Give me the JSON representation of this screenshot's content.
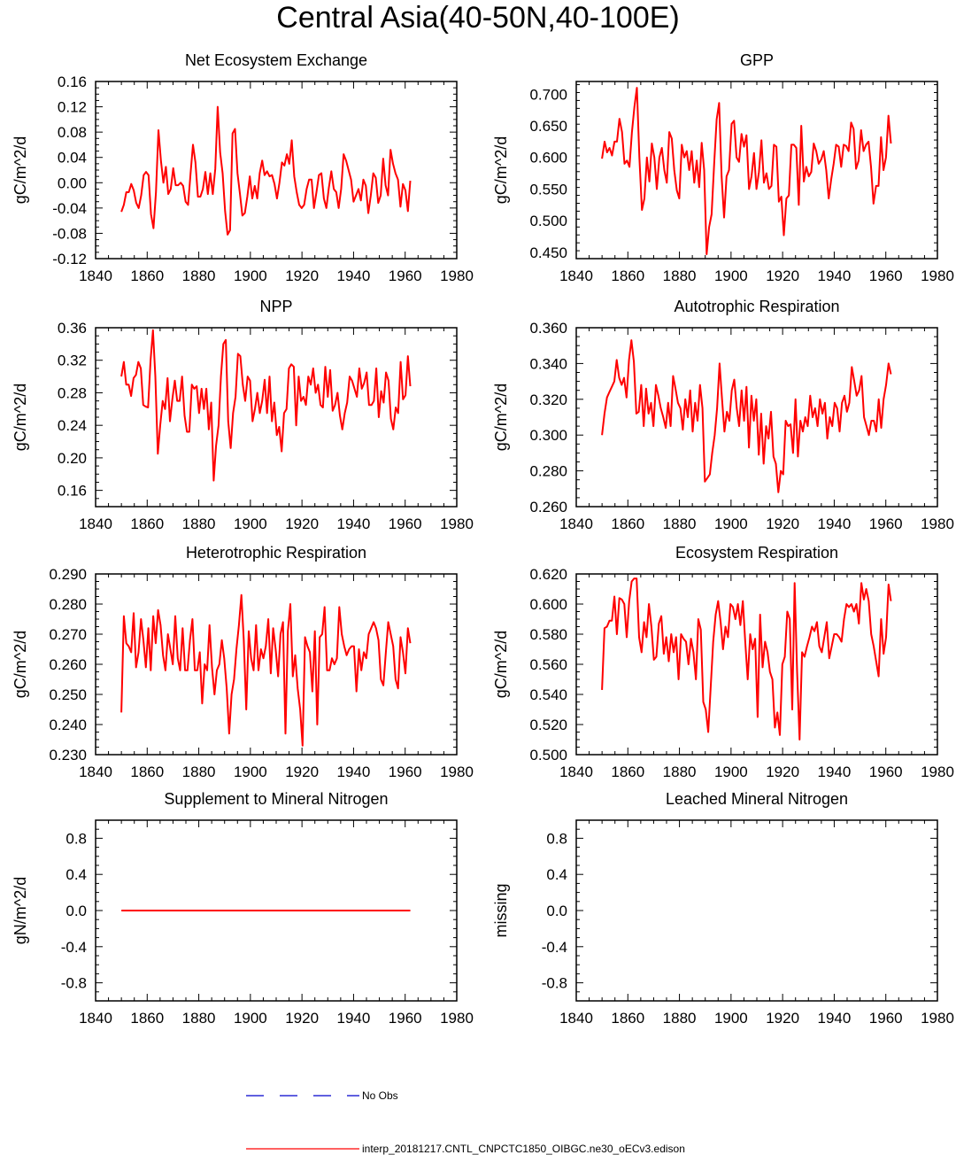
{
  "title": "Central Asia(40-50N,40-100E)",
  "colors": {
    "model": "#ff0000",
    "obs": "#0000cc",
    "axis": "#000000"
  },
  "legend": {
    "obs_label": "No Obs",
    "model_label": "interp_20181217.CNTL_CNPCTC1850_OIBGC.ne30_oECv3.edison"
  },
  "chart_data": [
    {
      "type": "line",
      "title": "Net Ecosystem Exchange",
      "ylabel": "gC/m^2/d",
      "xlim": [
        1840,
        1980
      ],
      "ylim": [
        -0.12,
        0.16
      ],
      "xticks": [
        "1840",
        "1860",
        "1880",
        "1900",
        "1920",
        "1940",
        "1960",
        "1980"
      ],
      "yticks": [
        "-0.12",
        "-0.08",
        "-0.04",
        "0.00",
        "0.04",
        "0.08",
        "0.12",
        "0.16"
      ],
      "x_start": 1850,
      "series": [
        {
          "values": [
            -0.046,
            -0.035,
            -0.015,
            -0.015,
            -0.002,
            -0.012,
            -0.032,
            -0.04,
            -0.02,
            0.012,
            0.017,
            0.012,
            -0.05,
            -0.072,
            -0.015,
            0.083,
            0.035,
            0.0,
            0.025,
            -0.018,
            -0.01,
            0.023,
            -0.004,
            -0.004,
            0.0,
            -0.005,
            -0.03,
            -0.035,
            0.015,
            0.06,
            0.032,
            -0.022,
            -0.022,
            -0.01,
            0.017,
            -0.018,
            0.015,
            -0.018,
            0.022,
            0.12,
            0.048,
            0.015,
            -0.045,
            -0.082,
            -0.075,
            0.078,
            0.085,
            0.015,
            -0.018,
            -0.052,
            -0.048,
            -0.022,
            0.01,
            -0.025,
            -0.005,
            -0.025,
            0.015,
            0.035,
            0.012,
            0.018,
            0.01,
            0.012,
            -0.002,
            -0.025,
            0.0,
            0.032,
            0.027,
            0.045,
            0.03,
            0.067,
            0.01,
            -0.015,
            -0.035,
            -0.04,
            -0.035,
            -0.01,
            0.005,
            0.005,
            -0.04,
            -0.015,
            0.012,
            0.015,
            -0.025,
            -0.04,
            -0.008,
            0.018,
            -0.01,
            -0.015,
            -0.04,
            -0.01,
            0.045,
            0.035,
            0.02,
            0.005,
            -0.03,
            -0.02,
            -0.01,
            -0.028,
            0.005,
            -0.005,
            -0.048,
            -0.02,
            0.015,
            0.008,
            -0.032,
            -0.02,
            0.038,
            -0.004,
            -0.02,
            0.052,
            0.03,
            0.015,
            0.005,
            -0.038,
            -0.002,
            -0.012,
            -0.045,
            0.003
          ]
        }
      ]
    },
    {
      "type": "line",
      "title": "GPP",
      "ylabel": "gC/m^2/d",
      "xlim": [
        1840,
        1980
      ],
      "ylim": [
        0.44,
        0.72
      ],
      "xticks": [
        "1840",
        "1860",
        "1880",
        "1900",
        "1920",
        "1940",
        "1960",
        "1980"
      ],
      "yticks": [
        "0.450",
        "0.500",
        "0.550",
        "0.600",
        "0.650",
        "0.700"
      ],
      "ytick_values": [
        0.45,
        0.5,
        0.55,
        0.6,
        0.65,
        0.7
      ],
      "x_start": 1850,
      "series": [
        {
          "values": [
            0.598,
            0.625,
            0.608,
            0.615,
            0.603,
            0.625,
            0.625,
            0.661,
            0.64,
            0.59,
            0.595,
            0.585,
            0.64,
            0.68,
            0.71,
            0.6,
            0.517,
            0.535,
            0.6,
            0.562,
            0.622,
            0.6,
            0.55,
            0.6,
            0.615,
            0.58,
            0.56,
            0.64,
            0.63,
            0.58,
            0.548,
            0.535,
            0.62,
            0.6,
            0.61,
            0.58,
            0.61,
            0.56,
            0.595,
            0.553,
            0.623,
            0.58,
            0.447,
            0.49,
            0.51,
            0.59,
            0.66,
            0.686,
            0.57,
            0.505,
            0.57,
            0.58,
            0.653,
            0.658,
            0.6,
            0.593,
            0.637,
            0.617,
            0.635,
            0.55,
            0.57,
            0.607,
            0.55,
            0.577,
            0.627,
            0.56,
            0.575,
            0.55,
            0.555,
            0.62,
            0.617,
            0.53,
            0.538,
            0.477,
            0.535,
            0.54,
            0.62,
            0.62,
            0.615,
            0.525,
            0.65,
            0.562,
            0.585,
            0.57,
            0.577,
            0.622,
            0.61,
            0.59,
            0.597,
            0.61,
            0.58,
            0.535,
            0.565,
            0.59,
            0.62,
            0.617,
            0.585,
            0.62,
            0.618,
            0.61,
            0.655,
            0.645,
            0.582,
            0.595,
            0.643,
            0.61,
            0.62,
            0.625,
            0.585,
            0.527,
            0.555,
            0.555,
            0.632,
            0.58,
            0.6,
            0.666,
            0.622
          ]
        }
      ]
    },
    {
      "type": "line",
      "title": "NPP",
      "ylabel": "gC/m^2/d",
      "xlim": [
        1840,
        1980
      ],
      "ylim": [
        0.14,
        0.36
      ],
      "xticks": [
        "1840",
        "1860",
        "1880",
        "1900",
        "1920",
        "1940",
        "1960",
        "1980"
      ],
      "yticks": [
        "0.16",
        "0.20",
        "0.24",
        "0.28",
        "0.32",
        "0.36"
      ],
      "x_start": 1850,
      "series": [
        {
          "values": [
            0.3,
            0.318,
            0.29,
            0.29,
            0.276,
            0.298,
            0.302,
            0.318,
            0.31,
            0.265,
            0.263,
            0.262,
            0.32,
            0.357,
            0.3,
            0.205,
            0.24,
            0.27,
            0.26,
            0.298,
            0.245,
            0.272,
            0.295,
            0.27,
            0.27,
            0.3,
            0.252,
            0.232,
            0.232,
            0.29,
            0.285,
            0.288,
            0.255,
            0.285,
            0.26,
            0.285,
            0.235,
            0.268,
            0.172,
            0.215,
            0.24,
            0.3,
            0.34,
            0.345,
            0.245,
            0.212,
            0.255,
            0.275,
            0.328,
            0.325,
            0.29,
            0.27,
            0.3,
            0.295,
            0.245,
            0.26,
            0.28,
            0.255,
            0.27,
            0.296,
            0.255,
            0.3,
            0.245,
            0.268,
            0.228,
            0.238,
            0.208,
            0.255,
            0.26,
            0.31,
            0.315,
            0.312,
            0.24,
            0.3,
            0.27,
            0.275,
            0.265,
            0.3,
            0.29,
            0.31,
            0.28,
            0.29,
            0.265,
            0.262,
            0.312,
            0.275,
            0.308,
            0.258,
            0.265,
            0.28,
            0.252,
            0.235,
            0.255,
            0.268,
            0.3,
            0.295,
            0.285,
            0.275,
            0.31,
            0.285,
            0.292,
            0.305,
            0.265,
            0.265,
            0.27,
            0.31,
            0.25,
            0.282,
            0.268,
            0.305,
            0.295,
            0.248,
            0.235,
            0.262,
            0.255,
            0.318,
            0.272,
            0.277,
            0.325,
            0.288
          ]
        }
      ]
    },
    {
      "type": "line",
      "title": "Autotrophic Respiration",
      "ylabel": "gC/m^2/d",
      "xlim": [
        1840,
        1980
      ],
      "ylim": [
        0.26,
        0.36
      ],
      "xticks": [
        "1840",
        "1860",
        "1880",
        "1900",
        "1920",
        "1940",
        "1960",
        "1980"
      ],
      "yticks": [
        "0.260",
        "0.280",
        "0.300",
        "0.320",
        "0.340",
        "0.360"
      ],
      "x_start": 1850,
      "series": [
        {
          "values": [
            0.3,
            0.312,
            0.321,
            0.324,
            0.327,
            0.33,
            0.342,
            0.332,
            0.328,
            0.332,
            0.321,
            0.342,
            0.353,
            0.341,
            0.312,
            0.313,
            0.328,
            0.305,
            0.326,
            0.312,
            0.318,
            0.305,
            0.328,
            0.322,
            0.315,
            0.31,
            0.304,
            0.318,
            0.305,
            0.333,
            0.326,
            0.318,
            0.315,
            0.303,
            0.32,
            0.31,
            0.325,
            0.302,
            0.318,
            0.308,
            0.328,
            0.315,
            0.274,
            0.276,
            0.278,
            0.29,
            0.3,
            0.315,
            0.34,
            0.32,
            0.302,
            0.313,
            0.308,
            0.325,
            0.331,
            0.315,
            0.305,
            0.325,
            0.308,
            0.327,
            0.293,
            0.322,
            0.308,
            0.32,
            0.289,
            0.312,
            0.284,
            0.305,
            0.298,
            0.313,
            0.288,
            0.284,
            0.268,
            0.28,
            0.278,
            0.308,
            0.305,
            0.306,
            0.29,
            0.32,
            0.288,
            0.308,
            0.302,
            0.31,
            0.305,
            0.322,
            0.31,
            0.315,
            0.305,
            0.32,
            0.312,
            0.318,
            0.298,
            0.31,
            0.305,
            0.318,
            0.315,
            0.302,
            0.318,
            0.322,
            0.313,
            0.318,
            0.338,
            0.33,
            0.322,
            0.325,
            0.333,
            0.31,
            0.305,
            0.3,
            0.308,
            0.308,
            0.302,
            0.32,
            0.304,
            0.32,
            0.328,
            0.34,
            0.334
          ]
        }
      ]
    },
    {
      "type": "line",
      "title": "Heterotrophic Respiration",
      "ylabel": "gC/m^2/d",
      "xlim": [
        1840,
        1980
      ],
      "ylim": [
        0.23,
        0.29
      ],
      "xticks": [
        "1840",
        "1860",
        "1880",
        "1900",
        "1920",
        "1940",
        "1960",
        "1980"
      ],
      "yticks": [
        "0.230",
        "0.240",
        "0.250",
        "0.260",
        "0.270",
        "0.280",
        "0.290"
      ],
      "x_start": 1850,
      "series": [
        {
          "values": [
            0.244,
            0.276,
            0.267,
            0.266,
            0.264,
            0.277,
            0.259,
            0.264,
            0.275,
            0.268,
            0.259,
            0.272,
            0.258,
            0.276,
            0.267,
            0.278,
            0.273,
            0.263,
            0.258,
            0.27,
            0.265,
            0.26,
            0.276,
            0.262,
            0.258,
            0.272,
            0.258,
            0.258,
            0.268,
            0.275,
            0.258,
            0.258,
            0.264,
            0.247,
            0.26,
            0.258,
            0.273,
            0.259,
            0.25,
            0.258,
            0.26,
            0.268,
            0.262,
            0.252,
            0.237,
            0.25,
            0.255,
            0.265,
            0.273,
            0.283,
            0.268,
            0.245,
            0.271,
            0.262,
            0.258,
            0.273,
            0.258,
            0.265,
            0.262,
            0.266,
            0.275,
            0.257,
            0.272,
            0.265,
            0.256,
            0.27,
            0.274,
            0.237,
            0.271,
            0.28,
            0.256,
            0.263,
            0.252,
            0.245,
            0.233,
            0.269,
            0.266,
            0.264,
            0.251,
            0.271,
            0.24,
            0.269,
            0.27,
            0.279,
            0.258,
            0.258,
            0.262,
            0.26,
            0.262,
            0.279,
            0.27,
            0.266,
            0.263,
            0.265,
            0.266,
            0.266,
            0.251,
            0.265,
            0.258,
            0.264,
            0.262,
            0.27,
            0.272,
            0.274,
            0.272,
            0.268,
            0.255,
            0.253,
            0.264,
            0.274,
            0.27,
            0.266,
            0.255,
            0.252,
            0.269,
            0.264,
            0.257,
            0.272,
            0.267
          ]
        }
      ]
    },
    {
      "type": "line",
      "title": "Ecosystem Respiration",
      "ylabel": "gC/m^2/d",
      "xlim": [
        1840,
        1980
      ],
      "ylim": [
        0.5,
        0.62
      ],
      "xticks": [
        "1840",
        "1860",
        "1880",
        "1900",
        "1920",
        "1940",
        "1960",
        "1980"
      ],
      "yticks": [
        "0.500",
        "0.520",
        "0.540",
        "0.560",
        "0.580",
        "0.600",
        "0.620"
      ],
      "x_start": 1850,
      "series": [
        {
          "values": [
            0.543,
            0.584,
            0.585,
            0.589,
            0.589,
            0.605,
            0.58,
            0.604,
            0.603,
            0.6,
            0.578,
            0.602,
            0.615,
            0.617,
            0.617,
            0.578,
            0.568,
            0.588,
            0.578,
            0.6,
            0.585,
            0.563,
            0.565,
            0.587,
            0.592,
            0.567,
            0.578,
            0.562,
            0.58,
            0.568,
            0.578,
            0.55,
            0.58,
            0.577,
            0.575,
            0.56,
            0.577,
            0.568,
            0.55,
            0.59,
            0.583,
            0.535,
            0.53,
            0.515,
            0.545,
            0.575,
            0.593,
            0.602,
            0.588,
            0.57,
            0.585,
            0.578,
            0.6,
            0.598,
            0.59,
            0.6,
            0.586,
            0.602,
            0.575,
            0.55,
            0.58,
            0.57,
            0.577,
            0.525,
            0.593,
            0.558,
            0.575,
            0.568,
            0.555,
            0.55,
            0.518,
            0.528,
            0.513,
            0.56,
            0.565,
            0.595,
            0.59,
            0.53,
            0.614,
            0.555,
            0.51,
            0.568,
            0.565,
            0.572,
            0.578,
            0.585,
            0.582,
            0.588,
            0.572,
            0.568,
            0.578,
            0.588,
            0.564,
            0.572,
            0.58,
            0.58,
            0.578,
            0.575,
            0.59,
            0.6,
            0.598,
            0.6,
            0.595,
            0.6,
            0.587,
            0.614,
            0.603,
            0.61,
            0.602,
            0.58,
            0.572,
            0.562,
            0.552,
            0.59,
            0.567,
            0.578,
            0.613,
            0.602
          ]
        }
      ]
    },
    {
      "type": "line",
      "title": "Supplement to Mineral Nitrogen",
      "ylabel": "gN/m^2/d",
      "xlim": [
        1840,
        1980
      ],
      "ylim": [
        -1.0,
        1.0
      ],
      "xticks": [
        "1840",
        "1860",
        "1880",
        "1900",
        "1920",
        "1940",
        "1960",
        "1980"
      ],
      "yticks": [
        "-0.8",
        "-0.4",
        "0.0",
        "0.4",
        "0.8"
      ],
      "ytick_values": [
        -0.8,
        -0.4,
        0.0,
        0.4,
        0.8
      ],
      "x_start": 1850,
      "series": [
        {
          "constant": 0.0,
          "x_end": 1962
        }
      ]
    },
    {
      "type": "line",
      "title": "Leached Mineral Nitrogen",
      "ylabel": "missing",
      "xlim": [
        1840,
        1980
      ],
      "ylim": [
        -1.0,
        1.0
      ],
      "xticks": [
        "1840",
        "1860",
        "1880",
        "1900",
        "1920",
        "1940",
        "1960",
        "1980"
      ],
      "yticks": [
        "-0.8",
        "-0.4",
        "0.0",
        "0.4",
        "0.8"
      ],
      "ytick_values": [
        -0.8,
        -0.4,
        0.0,
        0.4,
        0.8
      ],
      "series": []
    }
  ]
}
